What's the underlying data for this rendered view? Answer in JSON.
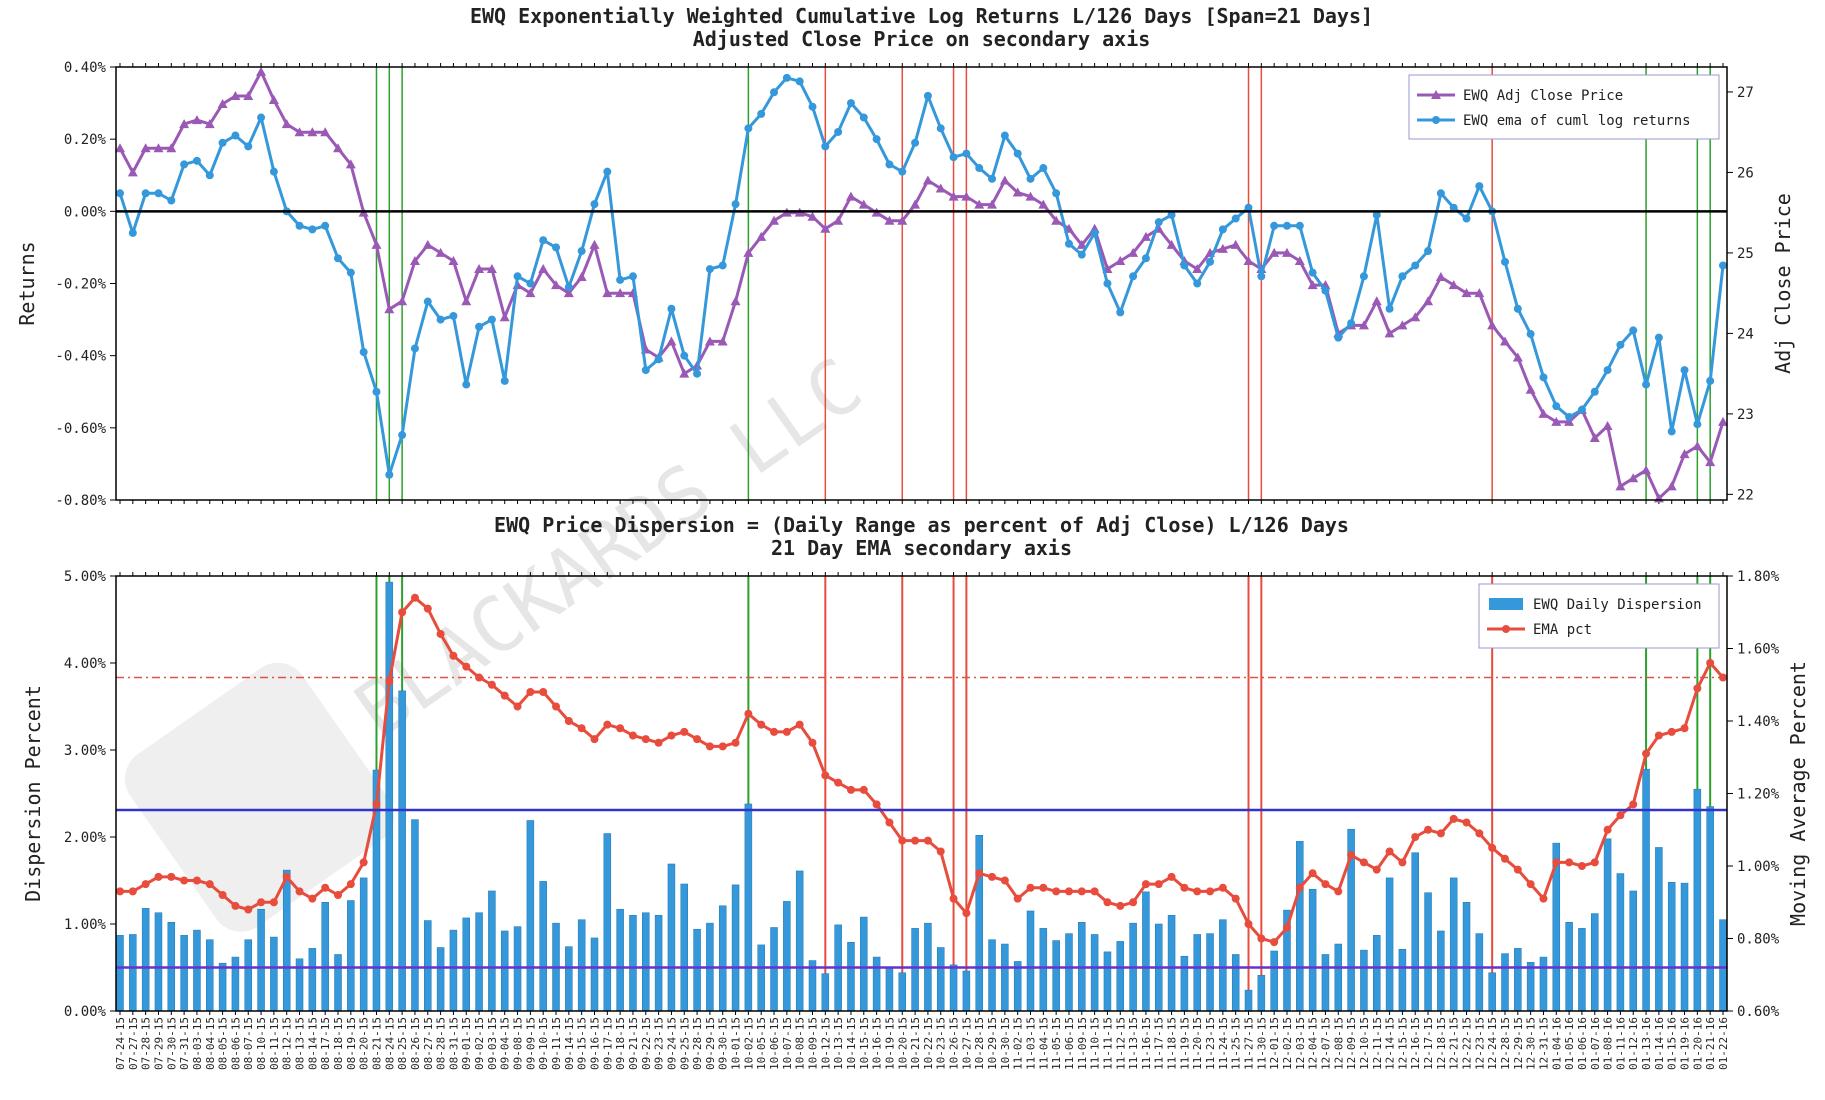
{
  "watermark": "BLACKARDS LLC",
  "chart_data": [
    {
      "type": "line",
      "title": "EWQ Exponentially Weighted Cumulative Log Returns L/126 Days [Span=21 Days]",
      "subtitle": "Adjusted Close Price on secondary axis",
      "ylabel": "Returns",
      "y2label": "Adj Close Price",
      "ylim": [
        -0.8,
        0.4
      ],
      "yticks": [
        {
          "value": -0.8,
          "label": "-0.80%"
        },
        {
          "value": -0.6,
          "label": "-0.60%"
        },
        {
          "value": -0.4,
          "label": "-0.40%"
        },
        {
          "value": -0.2,
          "label": "-0.20%"
        },
        {
          "value": 0,
          "label": "0.00%"
        },
        {
          "value": 0.2,
          "label": "0.20%"
        },
        {
          "value": 0.4,
          "label": "0.40%"
        }
      ],
      "y2lim": [
        21.93,
        27.31
      ],
      "y2ticks": [
        22,
        23,
        24,
        25,
        26,
        27
      ],
      "legend": "upper right",
      "hlines": [
        {
          "value": 0,
          "color": "#000000"
        }
      ],
      "vlines": [
        {
          "at": "08-21-15",
          "color": "#2ca02c"
        },
        {
          "at": "08-24-15",
          "color": "#2ca02c"
        },
        {
          "at": "08-25-15",
          "color": "#2ca02c"
        },
        {
          "at": "10-02-15",
          "color": "#2ca02c"
        },
        {
          "at": "10-12-15",
          "color": "#e74c3c"
        },
        {
          "at": "10-20-15",
          "color": "#e74c3c"
        },
        {
          "at": "10-26-15",
          "color": "#e74c3c"
        },
        {
          "at": "10-27-15",
          "color": "#e74c3c"
        },
        {
          "at": "11-27-15",
          "color": "#e74c3c"
        },
        {
          "at": "11-30-15",
          "color": "#e74c3c"
        },
        {
          "at": "12-24-15",
          "color": "#e74c3c"
        },
        {
          "at": "01-13-16",
          "color": "#2ca02c"
        },
        {
          "at": "01-20-16",
          "color": "#2ca02c"
        },
        {
          "at": "01-21-16",
          "color": "#2ca02c"
        }
      ],
      "series": [
        {
          "name": "EWQ Adj Close Price",
          "color": "#9b59b6",
          "marker": "triangle",
          "axis": "y2",
          "values": [
            26.3,
            26.0,
            26.3,
            26.3,
            26.3,
            26.6,
            26.65,
            26.6,
            26.85,
            26.95,
            26.95,
            27.25,
            26.9,
            26.6,
            26.5,
            26.5,
            26.5,
            26.3,
            26.1,
            25.5,
            25.1,
            24.3,
            24.4,
            24.9,
            25.1,
            25.0,
            24.9,
            24.4,
            24.8,
            24.8,
            24.2,
            24.6,
            24.5,
            24.8,
            24.6,
            24.5,
            24.7,
            25.1,
            24.5,
            24.5,
            24.5,
            23.8,
            23.7,
            23.9,
            23.5,
            23.6,
            23.9,
            23.9,
            24.4,
            25.0,
            25.2,
            25.4,
            25.5,
            25.5,
            25.45,
            25.3,
            25.4,
            25.7,
            25.6,
            25.5,
            25.4,
            25.4,
            25.6,
            25.9,
            25.8,
            25.7,
            25.7,
            25.6,
            25.6,
            25.9,
            25.75,
            25.7,
            25.6,
            25.4,
            25.3,
            25.1,
            25.3,
            24.8,
            24.9,
            25.0,
            25.2,
            25.3,
            25.1,
            24.9,
            24.8,
            25.0,
            25.05,
            25.1,
            24.9,
            24.8,
            25.0,
            25.0,
            24.9,
            24.6,
            24.6,
            24.0,
            24.1,
            24.1,
            24.4,
            24.0,
            24.1,
            24.2,
            24.4,
            24.7,
            24.6,
            24.5,
            24.5,
            24.1,
            23.9,
            23.7,
            23.3,
            23.0,
            22.9,
            22.9,
            23.05,
            22.7,
            22.85,
            22.1,
            22.2,
            22.3,
            21.95,
            22.1,
            22.5,
            22.6,
            22.4,
            22.9
          ]
        },
        {
          "name": "EWQ ema of cuml log returns",
          "color": "#3498db",
          "marker": "circle",
          "values": [
            0.05,
            -0.06,
            0.05,
            0.05,
            0.03,
            0.13,
            0.14,
            0.1,
            0.19,
            0.21,
            0.18,
            0.26,
            0.11,
            0,
            -0.04,
            -0.05,
            -0.04,
            -0.13,
            -0.17,
            -0.39,
            -0.5,
            -0.73,
            -0.62,
            -0.38,
            -0.25,
            -0.3,
            -0.29,
            -0.48,
            -0.32,
            -0.3,
            -0.47,
            -0.18,
            -0.2,
            -0.08,
            -0.1,
            -0.21,
            -0.11,
            0.02,
            0.11,
            -0.19,
            -0.18,
            -0.44,
            -0.41,
            -0.27,
            -0.4,
            -0.45,
            -0.16,
            -0.15,
            0.02,
            0.23,
            0.27,
            0.33,
            0.37,
            0.36,
            0.29,
            0.18,
            0.22,
            0.3,
            0.26,
            0.2,
            0.13,
            0.11,
            0.19,
            0.32,
            0.23,
            0.15,
            0.16,
            0.12,
            0.09,
            0.21,
            0.16,
            0.09,
            0.12,
            0.05,
            -0.09,
            -0.12,
            -0.06,
            -0.2,
            -0.28,
            -0.18,
            -0.13,
            -0.03,
            -0.01,
            -0.15,
            -0.2,
            -0.14,
            -0.05,
            -0.02,
            0.01,
            -0.18,
            -0.04,
            -0.04,
            -0.04,
            -0.17,
            -0.22,
            -0.35,
            -0.31,
            -0.18,
            -0.01,
            -0.27,
            -0.18,
            -0.15,
            -0.11,
            0.05,
            0.01,
            -0.02,
            0.07,
            0,
            -0.14,
            -0.27,
            -0.34,
            -0.46,
            -0.54,
            -0.57,
            -0.55,
            -0.5,
            -0.44,
            -0.37,
            -0.33,
            -0.48,
            -0.35,
            -0.61,
            -0.44,
            -0.59,
            -0.47,
            -0.15
          ]
        }
      ]
    },
    {
      "type": "combo",
      "title": "EWQ Price Dispersion = (Daily Range as percent of Adj Close) L/126 Days",
      "subtitle": "21 Day EMA secondary axis",
      "ylabel": "Dispersion Percent",
      "y2label": "Moving Average Percent",
      "ylim": [
        0,
        5
      ],
      "yticks": [
        {
          "value": 0,
          "label": "0.00%"
        },
        {
          "value": 1,
          "label": "1.00%"
        },
        {
          "value": 2,
          "label": "2.00%"
        },
        {
          "value": 3,
          "label": "3.00%"
        },
        {
          "value": 4,
          "label": "4.00%"
        },
        {
          "value": 5,
          "label": "5.00%"
        }
      ],
      "y2lim": [
        0.6,
        1.8
      ],
      "y2ticks": [
        {
          "value": 0.6,
          "label": "0.60%"
        },
        {
          "value": 0.8,
          "label": "0.80%"
        },
        {
          "value": 1.0,
          "label": "1.00%"
        },
        {
          "value": 1.2,
          "label": "1.20%"
        },
        {
          "value": 1.4,
          "label": "1.40%"
        },
        {
          "value": 1.6,
          "label": "1.60%"
        },
        {
          "value": 1.8,
          "label": "1.80%"
        }
      ],
      "legend": "upper right",
      "hlines": [
        {
          "value": 2.31,
          "color": "#3333cc"
        },
        {
          "value": 0.5,
          "color": "#6633cc"
        },
        {
          "value": 1.52,
          "axis": "y2",
          "color": "#d9534f",
          "style": "dashdot"
        }
      ],
      "vlines": [
        {
          "at": "08-21-15",
          "color": "#2ca02c"
        },
        {
          "at": "08-24-15",
          "color": "#2ca02c"
        },
        {
          "at": "08-25-15",
          "color": "#2ca02c"
        },
        {
          "at": "10-02-15",
          "color": "#2ca02c"
        },
        {
          "at": "10-12-15",
          "color": "#e74c3c"
        },
        {
          "at": "10-20-15",
          "color": "#e74c3c"
        },
        {
          "at": "10-26-15",
          "color": "#e74c3c"
        },
        {
          "at": "10-27-15",
          "color": "#e74c3c"
        },
        {
          "at": "11-27-15",
          "color": "#e74c3c"
        },
        {
          "at": "11-30-15",
          "color": "#e74c3c"
        },
        {
          "at": "12-24-15",
          "color": "#e74c3c"
        },
        {
          "at": "01-13-16",
          "color": "#2ca02c"
        },
        {
          "at": "01-20-16",
          "color": "#2ca02c"
        },
        {
          "at": "01-21-16",
          "color": "#2ca02c"
        }
      ],
      "categories": [
        "07-24-15",
        "07-27-15",
        "07-28-15",
        "07-29-15",
        "07-30-15",
        "07-31-15",
        "08-03-15",
        "08-04-15",
        "08-05-15",
        "08-06-15",
        "08-07-15",
        "08-10-15",
        "08-11-15",
        "08-12-15",
        "08-13-15",
        "08-14-15",
        "08-17-15",
        "08-18-15",
        "08-19-15",
        "08-20-15",
        "08-21-15",
        "08-24-15",
        "08-25-15",
        "08-26-15",
        "08-27-15",
        "08-28-15",
        "08-31-15",
        "09-01-15",
        "09-02-15",
        "09-03-15",
        "09-04-15",
        "09-08-15",
        "09-09-15",
        "09-10-15",
        "09-11-15",
        "09-14-15",
        "09-15-15",
        "09-16-15",
        "09-17-15",
        "09-18-15",
        "09-21-15",
        "09-22-15",
        "09-23-15",
        "09-24-15",
        "09-25-15",
        "09-28-15",
        "09-29-15",
        "09-30-15",
        "10-01-15",
        "10-02-15",
        "10-05-15",
        "10-06-15",
        "10-07-15",
        "10-08-15",
        "10-09-15",
        "10-12-15",
        "10-13-15",
        "10-14-15",
        "10-15-15",
        "10-16-15",
        "10-19-15",
        "10-20-15",
        "10-21-15",
        "10-22-15",
        "10-23-15",
        "10-26-15",
        "10-27-15",
        "10-28-15",
        "10-29-15",
        "10-30-15",
        "11-02-15",
        "11-03-15",
        "11-04-15",
        "11-05-15",
        "11-06-15",
        "11-09-15",
        "11-10-15",
        "11-11-15",
        "11-12-15",
        "11-13-15",
        "11-16-15",
        "11-17-15",
        "11-18-15",
        "11-19-15",
        "11-20-15",
        "11-23-15",
        "11-24-15",
        "11-25-15",
        "11-27-15",
        "11-30-15",
        "12-01-15",
        "12-02-15",
        "12-03-15",
        "12-04-15",
        "12-07-15",
        "12-08-15",
        "12-09-15",
        "12-10-15",
        "12-11-15",
        "12-14-15",
        "12-15-15",
        "12-16-15",
        "12-17-15",
        "12-18-15",
        "12-21-15",
        "12-22-15",
        "12-23-15",
        "12-24-15",
        "12-28-15",
        "12-29-15",
        "12-30-15",
        "12-31-15",
        "01-04-16",
        "01-05-16",
        "01-06-16",
        "01-07-16",
        "01-08-16",
        "01-11-16",
        "01-12-16",
        "01-13-16",
        "01-14-16",
        "01-15-16",
        "01-19-16",
        "01-20-16",
        "01-21-16",
        "01-22-16"
      ],
      "series": [
        {
          "name": "EWQ Daily Dispersion",
          "type": "bar",
          "color": "#3498db",
          "values": [
            0.87,
            0.88,
            1.18,
            1.13,
            1.02,
            0.87,
            0.93,
            0.82,
            0.55,
            0.62,
            0.82,
            1.17,
            0.85,
            1.62,
            0.6,
            0.72,
            1.25,
            0.65,
            1.27,
            1.53,
            2.77,
            4.93,
            3.68,
            2.2,
            1.04,
            0.73,
            0.93,
            1.07,
            1.13,
            1.38,
            0.92,
            0.97,
            2.19,
            1.49,
            1.01,
            0.74,
            1.05,
            0.84,
            2.04,
            1.17,
            1.1,
            1.13,
            1.1,
            1.69,
            1.46,
            0.94,
            1.01,
            1.21,
            1.45,
            2.38,
            0.76,
            0.96,
            1.26,
            1.61,
            0.58,
            0.43,
            0.99,
            0.79,
            1.08,
            0.62,
            0.49,
            0.44,
            0.95,
            1.01,
            0.73,
            0.53,
            0.46,
            2.02,
            0.82,
            0.77,
            0.57,
            1.15,
            0.95,
            0.81,
            0.89,
            1.02,
            0.88,
            0.68,
            0.8,
            1.01,
            1.37,
            1.0,
            1.1,
            0.63,
            0.88,
            0.89,
            1.05,
            0.65,
            0.24,
            0.41,
            0.69,
            1.16,
            1.95,
            1.4,
            0.65,
            0.77,
            2.09,
            0.7,
            0.87,
            1.53,
            0.71,
            1.82,
            1.36,
            0.92,
            1.53,
            1.25,
            0.89,
            0.44,
            0.66,
            0.72,
            0.56,
            0.62,
            1.93,
            1.02,
            0.95,
            1.12,
            1.98,
            1.58,
            1.38,
            2.78,
            1.88,
            1.48,
            1.47,
            2.55,
            2.35,
            1.05
          ]
        },
        {
          "name": "EMA pct",
          "type": "line",
          "axis": "y2",
          "color": "#e74c3c",
          "marker": "circle",
          "values": [
            0.93,
            0.93,
            0.95,
            0.97,
            0.97,
            0.96,
            0.96,
            0.95,
            0.92,
            0.89,
            0.88,
            0.9,
            0.9,
            0.97,
            0.93,
            0.91,
            0.94,
            0.92,
            0.95,
            1.01,
            1.17,
            1.51,
            1.7,
            1.74,
            1.71,
            1.64,
            1.58,
            1.55,
            1.52,
            1.5,
            1.47,
            1.44,
            1.48,
            1.48,
            1.44,
            1.4,
            1.38,
            1.35,
            1.39,
            1.38,
            1.36,
            1.35,
            1.34,
            1.36,
            1.37,
            1.35,
            1.33,
            1.33,
            1.34,
            1.42,
            1.39,
            1.37,
            1.37,
            1.39,
            1.34,
            1.25,
            1.23,
            1.21,
            1.21,
            1.17,
            1.12,
            1.07,
            1.07,
            1.07,
            1.04,
            0.91,
            0.87,
            0.98,
            0.97,
            0.96,
            0.91,
            0.94,
            0.94,
            0.93,
            0.93,
            0.93,
            0.93,
            0.9,
            0.89,
            0.9,
            0.95,
            0.95,
            0.97,
            0.94,
            0.93,
            0.93,
            0.94,
            0.91,
            0.84,
            0.8,
            0.79,
            0.83,
            0.94,
            0.98,
            0.95,
            0.93,
            1.03,
            1.01,
            0.99,
            1.04,
            1.01,
            1.08,
            1.1,
            1.09,
            1.13,
            1.12,
            1.09,
            1.05,
            1.02,
            0.99,
            0.95,
            0.91,
            1.01,
            1.01,
            1.0,
            1.01,
            1.1,
            1.14,
            1.17,
            1.31,
            1.36,
            1.37,
            1.38,
            1.49,
            1.56,
            1.52
          ]
        }
      ]
    }
  ]
}
